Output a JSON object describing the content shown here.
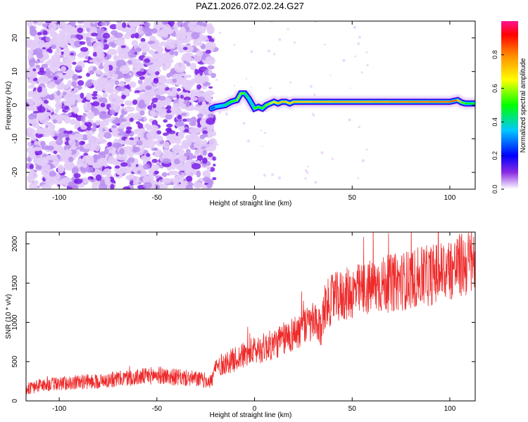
{
  "figure": {
    "title": "PAZ1.2026.072.02.24.G27"
  },
  "chart_data": [
    {
      "type": "heatmap",
      "title": "PAZ1.2026.072.02.24.G27",
      "xlabel": "Height of straight line (km)",
      "ylabel": "Frequency (Hz)",
      "xlim": [
        -117,
        113
      ],
      "ylim": [
        -25,
        25
      ],
      "x_ticks": [
        -100,
        -50,
        0,
        50,
        100
      ],
      "y_ticks": [
        -20,
        -10,
        0,
        10,
        20
      ],
      "noise_region_x": [
        -117,
        -22
      ],
      "ridge": {
        "x": [
          -22,
          -20,
          -15,
          -12,
          -9,
          -7,
          -5,
          -3,
          -1,
          0,
          2,
          4,
          6,
          8,
          10,
          12,
          14,
          16,
          18,
          20,
          25,
          30,
          40,
          50,
          60,
          70,
          80,
          90,
          100,
          104,
          106,
          108,
          113
        ],
        "y": [
          -1,
          -0.5,
          0,
          1,
          1.5,
          3.5,
          3.5,
          2,
          0,
          -1,
          -0.5,
          -1,
          0,
          0.5,
          1,
          0.5,
          1,
          1,
          0.5,
          1,
          1,
          1,
          1,
          1,
          1,
          1,
          1,
          1,
          1,
          1.5,
          0.8,
          0.5,
          0.5
        ],
        "amplitude": [
          0.2,
          0.3,
          0.4,
          0.5,
          0.55,
          0.6,
          0.5,
          0.4,
          0.35,
          0.5,
          0.55,
          0.5,
          0.55,
          0.6,
          0.65,
          0.7,
          0.75,
          0.7,
          0.7,
          0.72,
          0.72,
          0.72,
          0.75,
          0.75,
          0.75,
          0.78,
          0.8,
          0.8,
          0.82,
          0.85,
          0.6,
          0.5,
          0.45
        ]
      },
      "colorbar": {
        "label": "Normalized spectral amplitude",
        "range": [
          0,
          1
        ],
        "ticks": [
          "0.0",
          "0.2",
          "0.4",
          "0.6",
          "0.8"
        ]
      }
    },
    {
      "type": "line",
      "xlabel": "Height of straight line (km)",
      "ylabel": "SNR (10 * v/v)",
      "xlim": [
        -117,
        113
      ],
      "ylim": [
        0,
        2150
      ],
      "x_ticks": [
        -100,
        -50,
        0,
        50,
        100
      ],
      "y_ticks": [
        0,
        500,
        1000,
        1500,
        2000
      ],
      "series": [
        {
          "name": "SNR",
          "color": "#ee2a2a",
          "x": [
            -117,
            -110,
            -100,
            -90,
            -80,
            -70,
            -60,
            -50,
            -40,
            -30,
            -22,
            -20,
            -10,
            0,
            10,
            20,
            30,
            34,
            36,
            40,
            50,
            60,
            70,
            80,
            90,
            100,
            110,
            113
          ],
          "values": [
            150,
            200,
            220,
            240,
            250,
            280,
            300,
            330,
            300,
            280,
            250,
            430,
            530,
            640,
            720,
            860,
            1000,
            900,
            1200,
            1300,
            1380,
            1450,
            1500,
            1550,
            1600,
            1680,
            1760,
            1800
          ]
        }
      ]
    }
  ]
}
